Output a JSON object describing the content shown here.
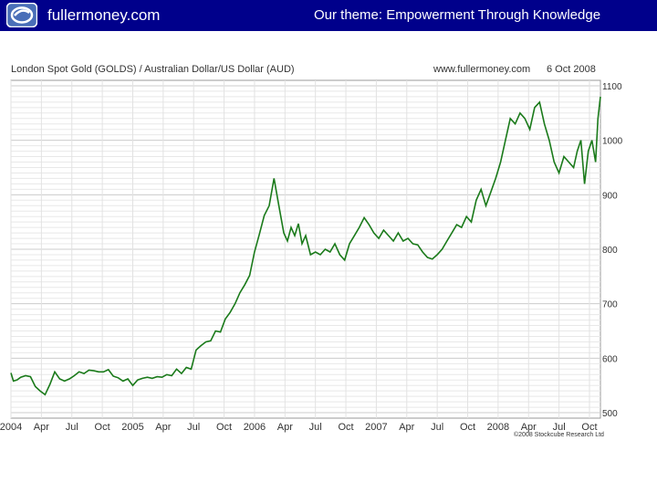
{
  "header": {
    "brand": "fullermoney.com",
    "theme": "Our theme: Empowerment Through Knowledge",
    "banner_color": "#00008b",
    "logo_icon": "fullermoney-logo"
  },
  "chart_data": {
    "type": "line",
    "title": "London Spot Gold (GOLDS) / Australian Dollar/US Dollar (AUD)",
    "source": "www.fullermoney.com",
    "date": "6 Oct 2008",
    "copyright": "©2008 Stockcube Research Ltd",
    "x_tick_labels": [
      "2004",
      "Apr",
      "Jul",
      "Oct",
      "2005",
      "Apr",
      "Jul",
      "Oct",
      "2006",
      "Apr",
      "Jul",
      "Oct",
      "2007",
      "Apr",
      "Jul",
      "Oct",
      "2008",
      "Apr",
      "Jul",
      "Oct"
    ],
    "y_tick_labels": [
      "500",
      "600",
      "700",
      "800",
      "900",
      "1000",
      "1100"
    ],
    "ylim": [
      490,
      1110
    ],
    "xlim": [
      2004.0,
      2008.84
    ],
    "grid": true,
    "y_axis_side": "right",
    "line_color": "#1a7a1a",
    "series": [
      {
        "x": [
          2004.0,
          2004.02,
          2004.05,
          2004.08,
          2004.12,
          2004.16,
          2004.2,
          2004.24,
          2004.28,
          2004.32,
          2004.36,
          2004.4,
          2004.44,
          2004.48,
          2004.52,
          2004.56,
          2004.6,
          2004.64,
          2004.68,
          2004.72,
          2004.76,
          2004.8,
          2004.84,
          2004.88,
          2004.92,
          2004.96,
          2005.0,
          2005.04,
          2005.08,
          2005.12,
          2005.16,
          2005.2,
          2005.24,
          2005.28,
          2005.32,
          2005.36,
          2005.4,
          2005.44,
          2005.48,
          2005.52,
          2005.56,
          2005.6,
          2005.64,
          2005.68,
          2005.72,
          2005.76,
          2005.8,
          2005.84,
          2005.88,
          2005.92,
          2005.96,
          2006.0,
          2006.04,
          2006.08,
          2006.12,
          2006.16,
          2006.2,
          2006.24,
          2006.27,
          2006.3,
          2006.33,
          2006.36,
          2006.39,
          2006.42,
          2006.46,
          2006.5,
          2006.54,
          2006.58,
          2006.62,
          2006.66,
          2006.7,
          2006.74,
          2006.78,
          2006.82,
          2006.86,
          2006.9,
          2006.94,
          2006.98,
          2007.02,
          2007.06,
          2007.1,
          2007.14,
          2007.18,
          2007.22,
          2007.26,
          2007.3,
          2007.34,
          2007.38,
          2007.42,
          2007.46,
          2007.5,
          2007.54,
          2007.58,
          2007.62,
          2007.66,
          2007.7,
          2007.74,
          2007.78,
          2007.82,
          2007.86,
          2007.9,
          2007.94,
          2007.98,
          2008.02,
          2008.06,
          2008.1,
          2008.14,
          2008.18,
          2008.22,
          2008.26,
          2008.3,
          2008.34,
          2008.38,
          2008.42,
          2008.46,
          2008.5,
          2008.54,
          2008.58,
          2008.62,
          2008.65,
          2008.68,
          2008.71,
          2008.74,
          2008.77,
          2008.8,
          2008.82,
          2008.84
        ],
        "values": [
          573,
          558,
          560,
          565,
          568,
          566,
          548,
          540,
          533,
          552,
          575,
          562,
          558,
          562,
          568,
          575,
          572,
          578,
          577,
          575,
          575,
          579,
          567,
          564,
          558,
          562,
          550,
          560,
          563,
          565,
          563,
          566,
          565,
          570,
          568,
          580,
          572,
          583,
          580,
          615,
          623,
          630,
          632,
          650,
          648,
          672,
          684,
          700,
          720,
          735,
          752,
          795,
          828,
          862,
          880,
          930,
          880,
          830,
          815,
          840,
          825,
          847,
          810,
          825,
          790,
          795,
          790,
          800,
          795,
          810,
          790,
          780,
          810,
          825,
          840,
          858,
          845,
          830,
          820,
          835,
          825,
          815,
          830,
          815,
          820,
          810,
          808,
          795,
          785,
          782,
          790,
          800,
          815,
          830,
          845,
          840,
          860,
          850,
          890,
          910,
          880,
          905,
          930,
          960,
          1000,
          1040,
          1030,
          1050,
          1040,
          1020,
          1060,
          1070,
          1030,
          1000,
          960,
          940,
          970,
          960,
          950,
          980,
          1000,
          920,
          980,
          1000,
          960,
          1040,
          1080
        ]
      }
    ]
  }
}
